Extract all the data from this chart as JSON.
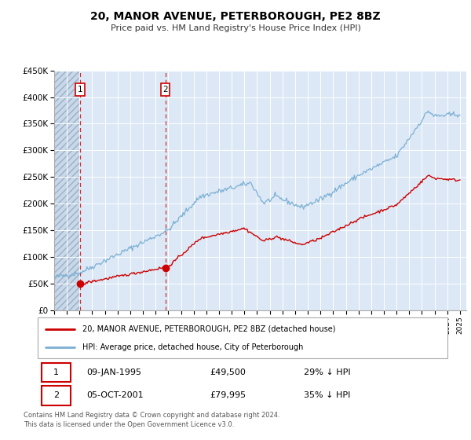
{
  "title": "20, MANOR AVENUE, PETERBOROUGH, PE2 8BZ",
  "subtitle": "Price paid vs. HM Land Registry's House Price Index (HPI)",
  "ylim": [
    0,
    450000
  ],
  "xlim_start": 1993.0,
  "xlim_end": 2025.5,
  "sale1_year": 1995.03,
  "sale1_price": 49500,
  "sale1_label": "09-JAN-1995",
  "sale1_pct": "29% ↓ HPI",
  "sale2_year": 2001.76,
  "sale2_price": 79995,
  "sale2_label": "05-OCT-2001",
  "sale2_pct": "35% ↓ HPI",
  "red_line_color": "#cc0000",
  "blue_line_color": "#7bafd4",
  "bg_plot_color": "#dce8f5",
  "hatch_bg_color": "#c8d8e8",
  "grid_color": "#ffffff",
  "legend_line1": "20, MANOR AVENUE, PETERBOROUGH, PE2 8BZ (detached house)",
  "legend_line2": "HPI: Average price, detached house, City of Peterborough",
  "footer1": "Contains HM Land Registry data © Crown copyright and database right 2024.",
  "footer2": "This data is licensed under the Open Government Licence v3.0.",
  "yticks": [
    0,
    50000,
    100000,
    150000,
    200000,
    250000,
    300000,
    350000,
    400000,
    450000
  ],
  "ytick_labels": [
    "£0",
    "£50K",
    "£100K",
    "£150K",
    "£200K",
    "£250K",
    "£300K",
    "£350K",
    "£400K",
    "£450K"
  ]
}
